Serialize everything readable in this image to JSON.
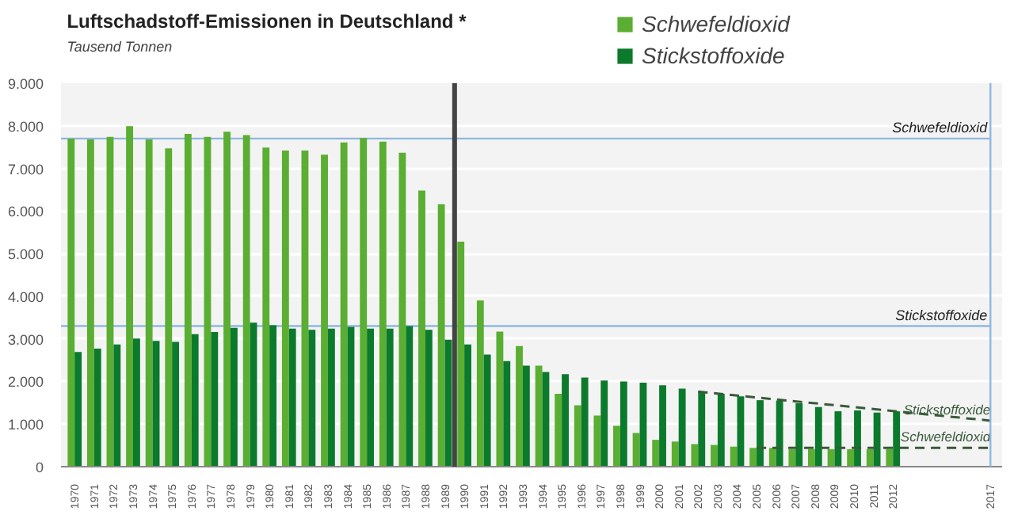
{
  "chart_data": {
    "type": "bar",
    "title": "Luftschadstoff-Emissionen in Deutschland *",
    "subtitle": "Tausend Tonnen",
    "x": [
      1970,
      1971,
      1972,
      1973,
      1974,
      1975,
      1976,
      1977,
      1978,
      1979,
      1980,
      1981,
      1982,
      1983,
      1984,
      1985,
      1986,
      1987,
      1988,
      1989,
      1990,
      1991,
      1992,
      1993,
      1994,
      1995,
      1996,
      1997,
      1998,
      1999,
      2000,
      2001,
      2002,
      2003,
      2004,
      2005,
      2006,
      2007,
      2008,
      2009,
      2010,
      2011,
      2012
    ],
    "series": [
      {
        "name": "Schwefeldioxid",
        "color": "#5aae32",
        "values": [
          7700,
          7680,
          7740,
          7990,
          7680,
          7470,
          7810,
          7740,
          7860,
          7780,
          7490,
          7420,
          7420,
          7320,
          7610,
          7710,
          7630,
          7370,
          6480,
          6160,
          5280,
          3900,
          3170,
          2830,
          2370,
          1710,
          1440,
          1200,
          960,
          790,
          630,
          590,
          530,
          510,
          470,
          440,
          440,
          410,
          410,
          410,
          410,
          410,
          410
        ]
      },
      {
        "name": "Stickstoffoxide",
        "color": "#0b7a2c",
        "values": [
          2690,
          2770,
          2870,
          3010,
          2950,
          2930,
          3110,
          3160,
          3260,
          3380,
          3320,
          3240,
          3210,
          3240,
          3280,
          3240,
          3240,
          3300,
          3210,
          2980,
          2870,
          2630,
          2480,
          2370,
          2220,
          2170,
          2090,
          2020,
          2000,
          1970,
          1910,
          1830,
          1760,
          1710,
          1650,
          1560,
          1550,
          1490,
          1400,
          1300,
          1320,
          1270,
          1300
        ]
      },
      {
        "name": "Stickstoffoxide",
        "type": "line",
        "line_style": "dashed",
        "color": "#3a5a3a",
        "x": [
          2002,
          2017
        ],
        "values": [
          1760,
          1080
        ]
      },
      {
        "name": "Schwefeldioxid",
        "type": "line",
        "line_style": "dashed",
        "color": "#3a5a3a",
        "x": [
          2005,
          2017
        ],
        "values": [
          440,
          440
        ]
      }
    ],
    "xlim": [
      1969.3,
      2017.6
    ],
    "xticks": [
      1970,
      1971,
      1972,
      1973,
      1974,
      1975,
      1976,
      1977,
      1978,
      1979,
      1980,
      1981,
      1982,
      1983,
      1984,
      1985,
      1986,
      1987,
      1988,
      1989,
      1990,
      1991,
      1992,
      1993,
      1994,
      1995,
      1996,
      1997,
      1998,
      1999,
      2000,
      2001,
      2002,
      2003,
      2004,
      2005,
      2006,
      2007,
      2008,
      2009,
      2010,
      2011,
      2012,
      2017
    ],
    "ylim": [
      0,
      9000
    ],
    "yticks": [
      0,
      {
        "value": 1000,
        "label": "1.000"
      },
      {
        "value": 2000,
        "label": "2.000"
      },
      {
        "value": 3000,
        "label": "3.000"
      },
      {
        "value": 4000,
        "label": "4.000"
      },
      {
        "value": 5000,
        "label": "5.000"
      },
      {
        "value": 6000,
        "label": "6.000"
      },
      {
        "value": 7000,
        "label": "7.000"
      },
      {
        "value": 8000,
        "label": "8.000"
      },
      {
        "value": 9000,
        "label": "9.000"
      }
    ],
    "grid": "y",
    "legend": "top",
    "ref_lines": [
      {
        "axis": "y",
        "value": 7700,
        "label": "Schwefeldioxid",
        "color": "#8fb8e0"
      },
      {
        "axis": "y",
        "value": 3300,
        "label": "Stickstoffoxide",
        "color": "#8fb8e0"
      },
      {
        "axis": "x",
        "value": 1989.5,
        "color": "#444444"
      },
      {
        "axis": "x",
        "value": 2017,
        "color": "#8fb8e0"
      }
    ]
  }
}
